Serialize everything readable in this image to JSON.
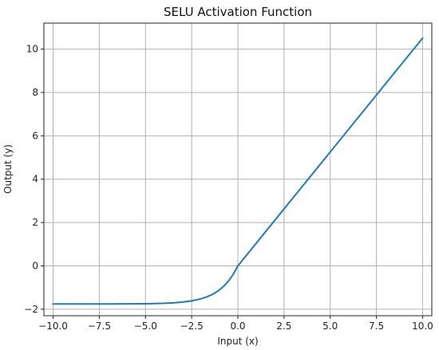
{
  "chart_data": {
    "type": "line",
    "title": "SELU Activation Function",
    "xlabel": "Input (x)",
    "ylabel": "Output (y)",
    "xlim": [
      -10.5,
      10.5
    ],
    "ylim": [
      -2.3,
      11.2
    ],
    "xticks": [
      -10.0,
      -7.5,
      -5.0,
      -2.5,
      0.0,
      2.5,
      5.0,
      7.5,
      10.0
    ],
    "xtick_labels": [
      "−10.0",
      "−7.5",
      "−5.0",
      "−2.5",
      "0.0",
      "2.5",
      "5.0",
      "7.5",
      "10.0"
    ],
    "yticks": [
      -2,
      0,
      2,
      4,
      6,
      8,
      10
    ],
    "ytick_labels": [
      "−2",
      "0",
      "2",
      "4",
      "6",
      "8",
      "10"
    ],
    "grid": true,
    "line_color": "#1f7bb8",
    "series": [
      {
        "x": [
          -10.0,
          -9.0,
          -8.0,
          -7.0,
          -6.0,
          -5.0,
          -4.5,
          -4.0,
          -3.5,
          -3.0,
          -2.5,
          -2.0,
          -1.75,
          -1.5,
          -1.25,
          -1.0,
          -0.75,
          -0.5,
          -0.25,
          0.0,
          2.5,
          5.0,
          7.5,
          10.0
        ],
        "y": [
          -1.758,
          -1.758,
          -1.757,
          -1.756,
          -1.753,
          -1.746,
          -1.738,
          -1.726,
          -1.705,
          -1.671,
          -1.614,
          -1.52,
          -1.453,
          -1.366,
          -1.254,
          -1.111,
          -0.927,
          -0.692,
          -0.388,
          0.0,
          2.627,
          5.254,
          7.881,
          10.507
        ]
      }
    ]
  }
}
